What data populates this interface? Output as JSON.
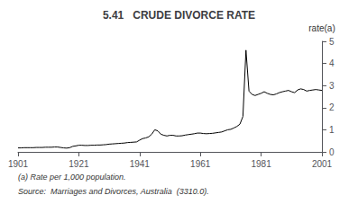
{
  "chart_data": {
    "type": "line",
    "title": "5.41   CRUDE DIVORCE RATE",
    "ylabel": "rate(a)",
    "annotations": [
      "(a) Rate per 1,000 population.",
      "Source:  Marriages and Divorces, Australia  (3310.0)."
    ],
    "x": [
      1901,
      1902,
      1903,
      1904,
      1905,
      1906,
      1907,
      1908,
      1909,
      1910,
      1911,
      1912,
      1913,
      1914,
      1915,
      1916,
      1917,
      1918,
      1919,
      1920,
      1921,
      1922,
      1923,
      1924,
      1925,
      1926,
      1927,
      1928,
      1929,
      1930,
      1931,
      1932,
      1933,
      1934,
      1935,
      1936,
      1937,
      1938,
      1939,
      1940,
      1941,
      1942,
      1943,
      1944,
      1945,
      1946,
      1947,
      1948,
      1949,
      1950,
      1951,
      1952,
      1953,
      1954,
      1955,
      1956,
      1957,
      1958,
      1959,
      1960,
      1961,
      1962,
      1963,
      1964,
      1965,
      1966,
      1967,
      1968,
      1969,
      1970,
      1971,
      1972,
      1973,
      1974,
      1975,
      1976,
      1977,
      1978,
      1979,
      1980,
      1981,
      1982,
      1983,
      1984,
      1985,
      1986,
      1987,
      1988,
      1989,
      1990,
      1991,
      1992,
      1993,
      1994,
      1995,
      1996,
      1997,
      1998,
      1999,
      2000,
      2001
    ],
    "values": [
      0.18,
      0.18,
      0.19,
      0.19,
      0.19,
      0.19,
      0.2,
      0.2,
      0.2,
      0.21,
      0.21,
      0.21,
      0.22,
      0.22,
      0.2,
      0.18,
      0.17,
      0.19,
      0.25,
      0.27,
      0.3,
      0.3,
      0.29,
      0.29,
      0.3,
      0.3,
      0.31,
      0.31,
      0.32,
      0.33,
      0.35,
      0.36,
      0.37,
      0.38,
      0.39,
      0.4,
      0.42,
      0.43,
      0.44,
      0.45,
      0.53,
      0.6,
      0.63,
      0.68,
      0.8,
      1.0,
      0.95,
      0.8,
      0.75,
      0.72,
      0.75,
      0.75,
      0.72,
      0.72,
      0.73,
      0.76,
      0.78,
      0.8,
      0.82,
      0.85,
      0.85,
      0.83,
      0.82,
      0.83,
      0.84,
      0.86,
      0.88,
      0.9,
      0.95,
      1.0,
      1.02,
      1.08,
      1.15,
      1.25,
      1.6,
      4.6,
      2.75,
      2.6,
      2.55,
      2.6,
      2.65,
      2.72,
      2.65,
      2.6,
      2.58,
      2.62,
      2.68,
      2.72,
      2.75,
      2.78,
      2.72,
      2.68,
      2.8,
      2.85,
      2.82,
      2.75,
      2.78,
      2.8,
      2.82,
      2.8,
      2.78
    ],
    "color": "#000000",
    "xlim": [
      1901,
      2001
    ],
    "xticks": [
      1901,
      1921,
      1941,
      1961,
      1981,
      2001
    ],
    "ylim": [
      0,
      5
    ],
    "yticks": [
      0,
      1,
      2,
      3,
      4,
      5
    ],
    "grid": false
  }
}
